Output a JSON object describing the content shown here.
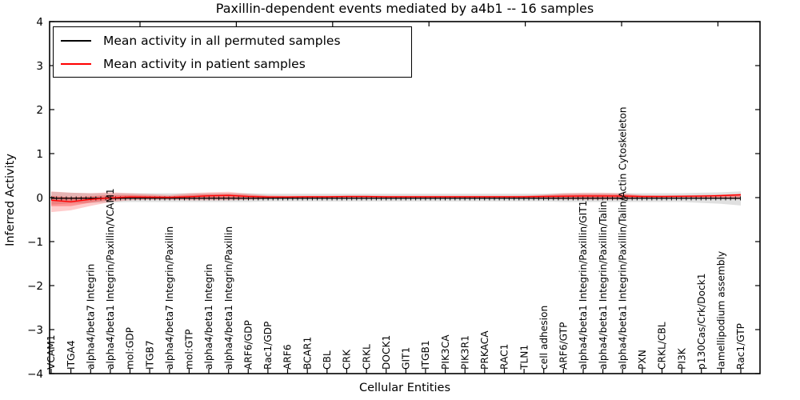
{
  "chart_data": {
    "type": "line",
    "title": "Paxillin-dependent events mediated by a4b1 -- 16 samples",
    "xlabel": "Cellular Entities",
    "ylabel": "Inferred Activity",
    "ylim": [
      -4,
      4
    ],
    "yticks": [
      -4,
      -3,
      -2,
      -1,
      0,
      1,
      2,
      3,
      4
    ],
    "grid": false,
    "legend_position": "upper left",
    "categories": [
      "VCAM1",
      "ITGA4",
      "alpha4/beta7 Integrin",
      "alpha4/beta1 Integrin/Paxillin/VCAM1",
      "mol:GDP",
      "ITGB7",
      "alpha4/beta7 Integrin/Paxillin",
      "mol:GTP",
      "alpha4/beta1 Integrin",
      "alpha4/beta1 Integrin/Paxillin",
      "ARF6/GDP",
      "Rac1/GDP",
      "ARF6",
      "BCAR1",
      "CBL",
      "CRK",
      "CRKL",
      "DOCK1",
      "GIT1",
      "ITGB1",
      "PIK3CA",
      "PIK3R1",
      "PRKACA",
      "RAC1",
      "TLN1",
      "cell adhesion",
      "ARF6/GTP",
      "alpha4/beta1 Integrin/Paxillin/GIT1",
      "alpha4/beta1 Integrin/Paxillin/Talin",
      "alpha4/beta1 Integrin/Paxillin/Talin/Actin Cytoskeleton",
      "PXN",
      "CRKL/CBL",
      "PI3K",
      "p130Cas/Crk/Dock1",
      "lamellipodium assembly",
      "Rac1/GTP"
    ],
    "series": [
      {
        "name": "Mean activity in all permuted samples",
        "color": "#000000",
        "values": [
          -0.015,
          -0.015,
          -0.015,
          -0.015,
          -0.015,
          -0.015,
          -0.015,
          -0.015,
          -0.015,
          -0.015,
          -0.015,
          -0.015,
          -0.015,
          -0.015,
          -0.015,
          -0.015,
          -0.015,
          -0.015,
          -0.015,
          -0.015,
          -0.015,
          -0.015,
          -0.015,
          -0.015,
          -0.015,
          -0.015,
          -0.015,
          -0.015,
          -0.015,
          -0.015,
          -0.015,
          -0.015,
          -0.015,
          -0.015,
          -0.015,
          -0.015
        ]
      },
      {
        "name": "Mean activity in patient samples",
        "color": "#ff0000",
        "values": [
          -0.06,
          -0.095,
          -0.04,
          -0.005,
          0.015,
          0.01,
          0.005,
          0.02,
          0.04,
          0.05,
          0.025,
          0.015,
          0.015,
          0.02,
          0.02,
          0.025,
          0.025,
          0.02,
          0.02,
          0.02,
          0.02,
          0.02,
          0.02,
          0.02,
          0.02,
          0.025,
          0.03,
          0.035,
          0.035,
          0.035,
          0.025,
          0.025,
          0.03,
          0.035,
          0.045,
          0.065
        ]
      }
    ],
    "bands": [
      {
        "name": "permuted-std-band",
        "fill": "#999999",
        "opacity": 0.3,
        "upper": [
          0.13,
          0.11,
          0.1,
          0.1,
          0.1,
          0.1,
          0.1,
          0.1,
          0.1,
          0.1,
          0.1,
          0.09,
          0.09,
          0.09,
          0.09,
          0.09,
          0.09,
          0.09,
          0.09,
          0.09,
          0.09,
          0.09,
          0.09,
          0.09,
          0.09,
          0.09,
          0.1,
          0.1,
          0.1,
          0.1,
          0.1,
          0.1,
          0.1,
          0.11,
          0.12,
          0.14
        ],
        "lower": [
          -0.16,
          -0.13,
          -0.12,
          -0.11,
          -0.1,
          -0.1,
          -0.1,
          -0.1,
          -0.1,
          -0.1,
          -0.1,
          -0.09,
          -0.09,
          -0.09,
          -0.09,
          -0.09,
          -0.09,
          -0.09,
          -0.09,
          -0.09,
          -0.09,
          -0.09,
          -0.09,
          -0.09,
          -0.09,
          -0.09,
          -0.1,
          -0.1,
          -0.1,
          -0.1,
          -0.1,
          -0.1,
          -0.1,
          -0.12,
          -0.14,
          -0.18
        ]
      },
      {
        "name": "patient-std-band",
        "fill": "#ff0000",
        "opacity": 0.2,
        "upper": [
          0.14,
          0.11,
          0.1,
          0.12,
          0.1,
          0.08,
          0.06,
          0.1,
          0.12,
          0.13,
          0.09,
          0.05,
          0.04,
          0.04,
          0.04,
          0.045,
          0.045,
          0.04,
          0.04,
          0.04,
          0.04,
          0.04,
          0.04,
          0.04,
          0.045,
          0.07,
          0.1,
          0.11,
          0.11,
          0.1,
          0.06,
          0.05,
          0.05,
          0.06,
          0.07,
          0.09
        ],
        "lower": [
          -0.33,
          -0.29,
          -0.19,
          -0.1,
          -0.06,
          -0.05,
          -0.05,
          -0.06,
          -0.06,
          -0.06,
          -0.05,
          -0.03,
          -0.02,
          -0.02,
          -0.02,
          -0.02,
          -0.02,
          -0.02,
          -0.02,
          -0.02,
          -0.02,
          -0.02,
          -0.02,
          -0.02,
          -0.025,
          -0.03,
          -0.04,
          -0.045,
          -0.045,
          -0.045,
          -0.025,
          -0.02,
          -0.02,
          -0.03,
          -0.03,
          -0.04
        ]
      }
    ]
  }
}
